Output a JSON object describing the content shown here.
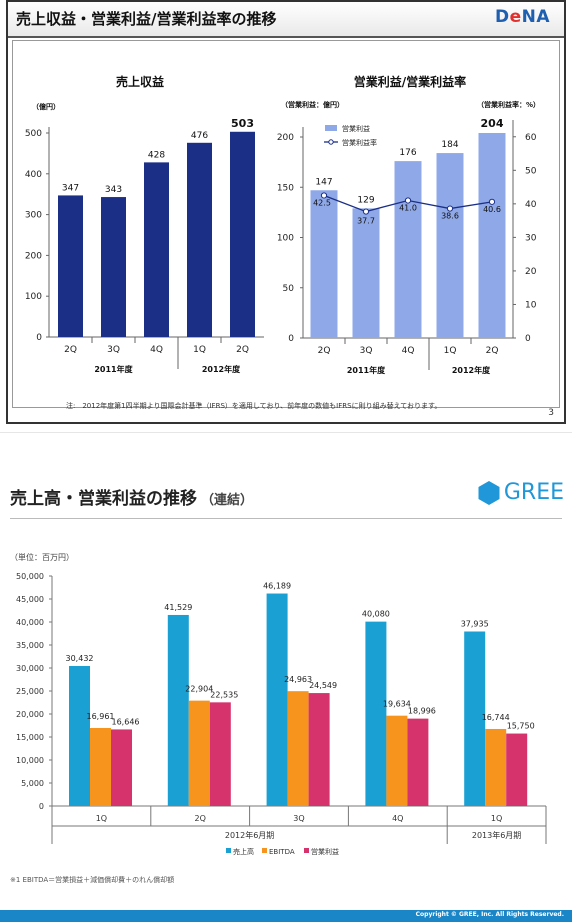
{
  "dena": {
    "title": "売上収益・営業利益/営業利益率の推移",
    "logo": {
      "part1": "D",
      "part2": "e",
      "part3": "NA"
    },
    "note": "注:　2012年度第1四半期より国際会計基準（IFRS）を適用しており、前年度の数値もIFRSに則り組み替えております。",
    "page": "3"
  },
  "gree": {
    "title": "売上高・営業利益の推移",
    "subtitle": "（連結）",
    "logo_text": "GREE",
    "note": "※1 EBITDA＝営業損益＋減価償却費＋のれん償却額",
    "copyright": "Copyright © GREE, Inc. All Rights Reserved."
  },
  "chart_data": [
    {
      "type": "bar",
      "title": "売上収益",
      "ylabel": "（億円）",
      "categories": [
        "2Q",
        "3Q",
        "4Q",
        "1Q",
        "2Q"
      ],
      "groups": [
        "2011年度",
        "2012年度"
      ],
      "values": [
        347,
        343,
        428,
        476,
        503
      ],
      "value_labels": [
        "347",
        "343",
        "428",
        "476",
        "503"
      ],
      "ylim": [
        0,
        500
      ],
      "yticks": [
        "0",
        "100",
        "200",
        "300",
        "400",
        "500"
      ],
      "color": "#1b2f86",
      "grid": false
    },
    {
      "type": "bar",
      "title": "営業利益/営業利益率",
      "ylabel": "（営業利益：億円）",
      "ylabel_right": "（営業利益率：%）",
      "categories": [
        "2Q",
        "3Q",
        "4Q",
        "1Q",
        "2Q"
      ],
      "groups": [
        "2011年度",
        "2012年度"
      ],
      "series": [
        {
          "name": "営業利益",
          "type": "bar",
          "axis": "left",
          "values": [
            147,
            129,
            176,
            184,
            204
          ],
          "value_labels": [
            "147",
            "129",
            "176",
            "184",
            "204"
          ],
          "color": "#8fa8e8"
        },
        {
          "name": "営業利益率",
          "type": "line",
          "axis": "right",
          "values": [
            42.5,
            37.7,
            41.0,
            38.6,
            40.6
          ],
          "value_labels": [
            "42.5",
            "37.7",
            "41.0",
            "38.6",
            "40.6"
          ],
          "color": "#1b2f86"
        }
      ],
      "ylim": [
        0,
        200
      ],
      "yticks": [
        "0",
        "50",
        "100",
        "150",
        "200"
      ],
      "ylim_right": [
        0,
        65
      ],
      "yticks_right": [
        "0",
        "10",
        "20",
        "30",
        "40",
        "50",
        "60"
      ],
      "legend": "top-left",
      "grid": false
    },
    {
      "type": "bar",
      "ylabel": "（単位：百万円）",
      "categories": [
        "1Q",
        "2Q",
        "3Q",
        "4Q",
        "1Q"
      ],
      "groups": [
        "2012年6月期",
        "2013年6月期"
      ],
      "series": [
        {
          "name": "売上高",
          "values": [
            30432,
            41529,
            46189,
            40080,
            37935
          ],
          "value_labels": [
            "30,432",
            "41,529",
            "46,189",
            "40,080",
            "37,935"
          ],
          "color": "#1aa0d2"
        },
        {
          "name": "EBITDA",
          "values": [
            16961,
            22904,
            24963,
            19634,
            16744
          ],
          "value_labels": [
            "16,961",
            "22,904",
            "24,963",
            "19,634",
            "16,744"
          ],
          "color": "#f7941d"
        },
        {
          "name": "営業利益",
          "values": [
            16646,
            22535,
            24549,
            18996,
            15750
          ],
          "value_labels": [
            "16,646",
            "22,535",
            "24,549",
            "18,996",
            "15,750"
          ],
          "color": "#d6336c"
        }
      ],
      "ylim": [
        0,
        50000
      ],
      "yticks": [
        "0",
        "5,000",
        "10,000",
        "15,000",
        "20,000",
        "25,000",
        "30,000",
        "35,000",
        "40,000",
        "45,000",
        "50,000"
      ],
      "legend": "bottom",
      "grid": false
    }
  ]
}
